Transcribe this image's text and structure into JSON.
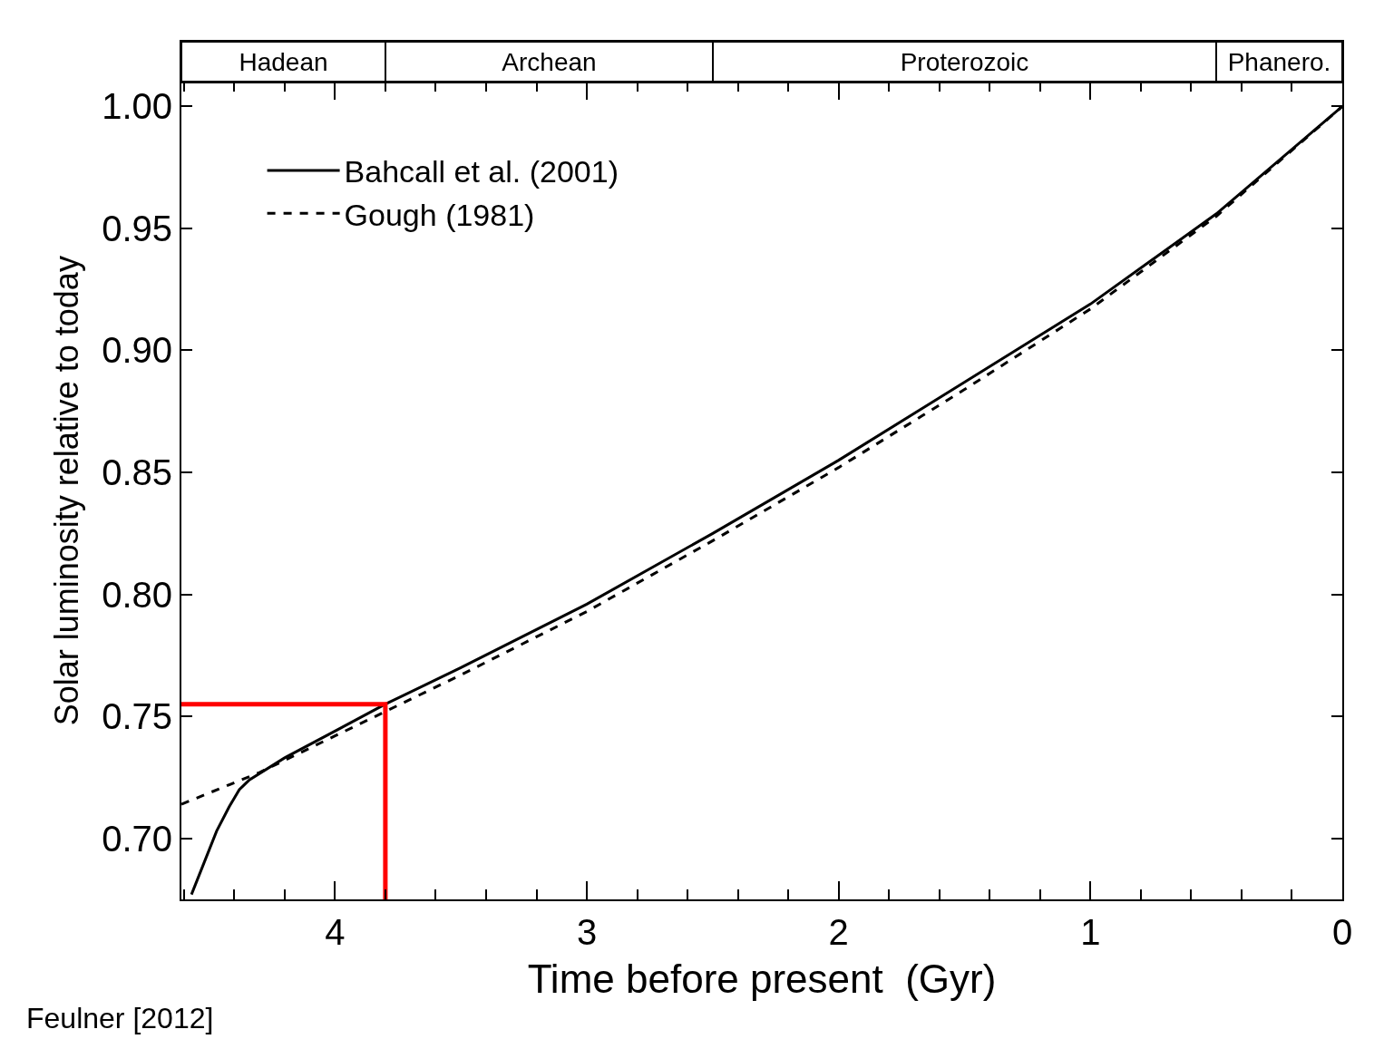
{
  "chart_data": [
    {
      "type": "bar",
      "orientation": "horizontal",
      "stacked": true,
      "categories": [
        null
      ],
      "xlim": [
        4.61,
        0
      ],
      "series": [
        {
          "color": "#ffffff",
          "values": [
            0.5
          ],
          "value_labels": [
            "Phanero."
          ]
        },
        {
          "color": "#ffffff",
          "values": [
            2.0
          ],
          "value_labels": [
            "Proterozoic"
          ]
        },
        {
          "color": "#ffffff",
          "values": [
            1.3
          ],
          "value_labels": [
            "Archean"
          ]
        },
        {
          "color": "#ffffff",
          "values": [
            0.81
          ],
          "value_labels": [
            "Hadean"
          ]
        }
      ]
    },
    {
      "type": "line",
      "xlabel": "Time before present  (Gyr)",
      "ylabel": "Solar luminosity relative to today",
      "xlim": [
        4.61,
        0
      ],
      "ylim": [
        0.675,
        1.01
      ],
      "xticks": [
        {
          "value": 4.6,
          "label": null
        },
        {
          "value": 4.4,
          "label": null
        },
        {
          "value": 4.2,
          "label": null
        },
        4,
        {
          "value": 3.8,
          "label": null
        },
        {
          "value": 3.6,
          "label": null
        },
        {
          "value": 3.4,
          "label": null
        },
        {
          "value": 3.2,
          "label": null
        },
        3,
        {
          "value": 2.8,
          "label": null
        },
        {
          "value": 2.6,
          "label": null
        },
        {
          "value": 2.4,
          "label": null
        },
        {
          "value": 2.2,
          "label": null
        },
        2,
        {
          "value": 1.8,
          "label": null
        },
        {
          "value": 1.6,
          "label": null
        },
        {
          "value": 1.4,
          "label": null
        },
        {
          "value": 1.2,
          "label": null
        },
        1,
        {
          "value": 0.8,
          "label": null
        },
        {
          "value": 0.6,
          "label": null
        },
        {
          "value": 0.4,
          "label": null
        },
        {
          "value": 0.2,
          "label": null
        },
        0
      ],
      "yticks": [
        {
          "value": 0.7,
          "label": "0.70"
        },
        {
          "value": 0.75,
          "label": "0.75"
        },
        {
          "value": 0.8,
          "label": "0.80"
        },
        {
          "value": 0.85,
          "label": "0.85"
        },
        {
          "value": 0.9,
          "label": "0.90"
        },
        {
          "value": 0.95,
          "label": "0.95"
        },
        {
          "value": 1.0,
          "label": "1.00"
        }
      ],
      "legend": "top left",
      "marker": "none",
      "series": [
        {
          "name": "Bahcall et al. (2001)",
          "color": "#000000",
          "line_style": "solid",
          "x": [
            4.57,
            4.52,
            4.47,
            4.42,
            4.38,
            4.34,
            4.2,
            4.0,
            3.8,
            3.5,
            3.0,
            2.5,
            2.0,
            1.5,
            1.0,
            0.5,
            0
          ],
          "values": [
            0.677,
            0.69,
            0.703,
            0.713,
            0.72,
            0.724,
            0.733,
            0.744,
            0.755,
            0.77,
            0.796,
            0.825,
            0.855,
            0.887,
            0.919,
            0.956,
            1.0
          ]
        },
        {
          "name": "Gough (1981)",
          "color": "#000000",
          "line_style": "dashed",
          "x": [
            4.61,
            4.3,
            4.0,
            3.5,
            3.0,
            2.5,
            2.0,
            1.5,
            1.0,
            0.5,
            0
          ],
          "values": [
            0.714,
            0.727,
            0.742,
            0.767,
            0.793,
            0.822,
            0.852,
            0.884,
            0.917,
            0.955,
            1.0
          ]
        },
        {
          "color": "#ff0000",
          "line_style": "solid",
          "x": [
            4.61,
            3.8,
            3.8
          ],
          "values": [
            0.755,
            0.755,
            0.675
          ]
        }
      ],
      "annotations": [
        "Feulner [2012]"
      ]
    }
  ]
}
